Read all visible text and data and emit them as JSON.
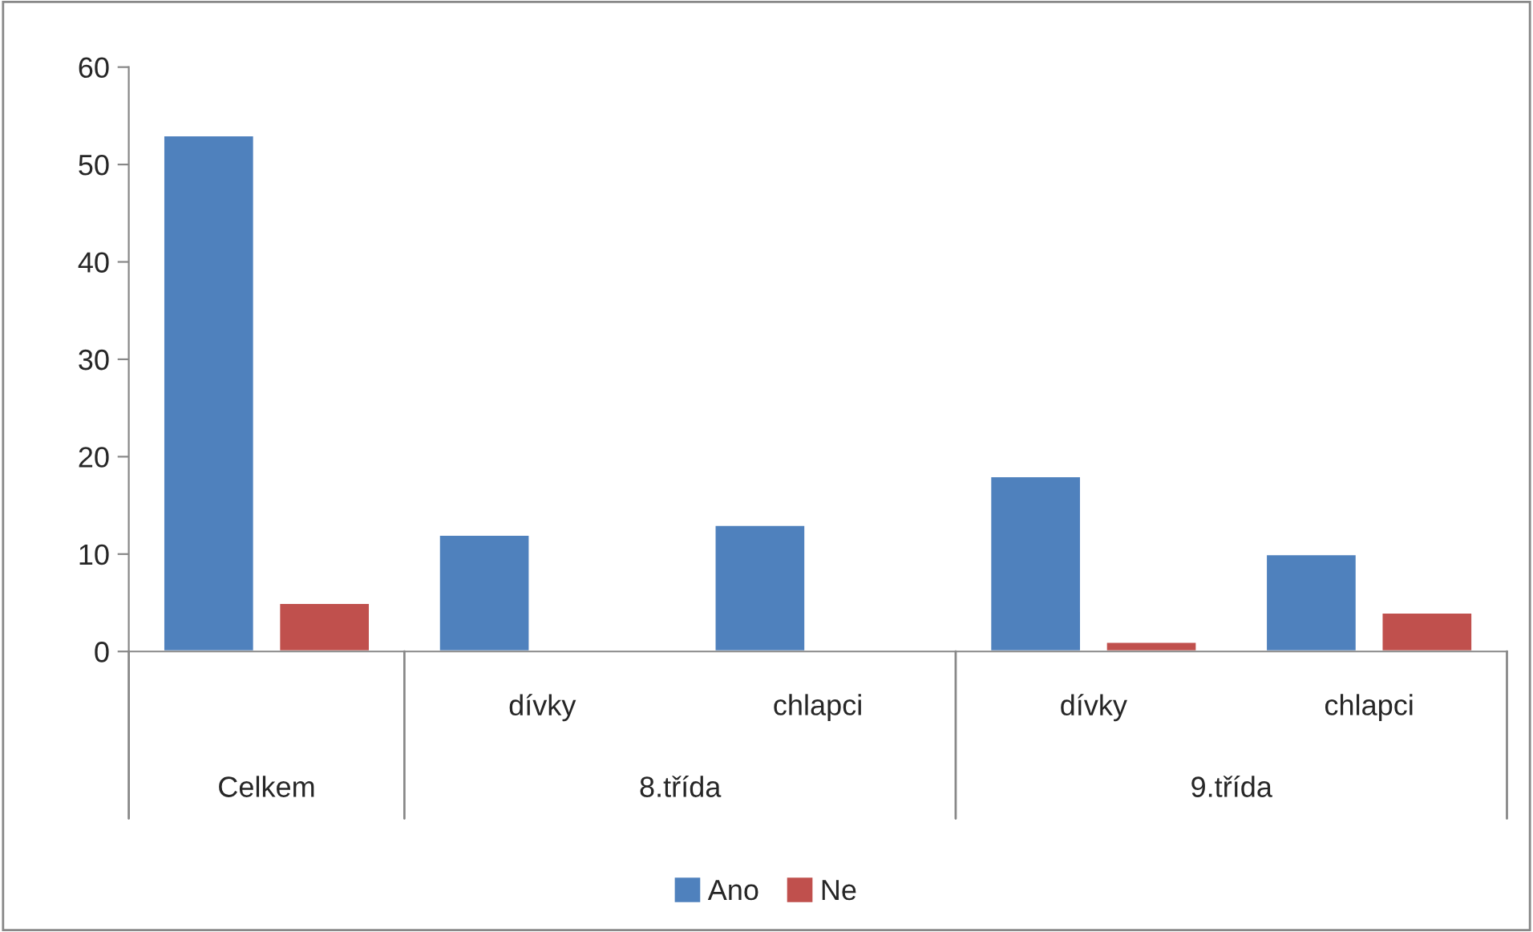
{
  "chart_data": {
    "type": "bar",
    "categories": [
      null,
      "dívky",
      "chlapci",
      "dívky",
      "chlapci"
    ],
    "annotations": [
      "Celkem",
      "8.třída",
      "9.třída"
    ],
    "series": [
      {
        "name": "Ano",
        "color": "#4f81bd",
        "values": [
          53,
          12,
          13,
          18,
          10
        ]
      },
      {
        "name": "Ne",
        "color": "#c0504d",
        "values": [
          5,
          null,
          null,
          1,
          4
        ]
      }
    ],
    "ylim": [
      0,
      60
    ],
    "yticks": [
      0,
      10,
      20,
      30,
      40,
      50,
      60
    ],
    "grid": false,
    "legend": "bottom"
  }
}
